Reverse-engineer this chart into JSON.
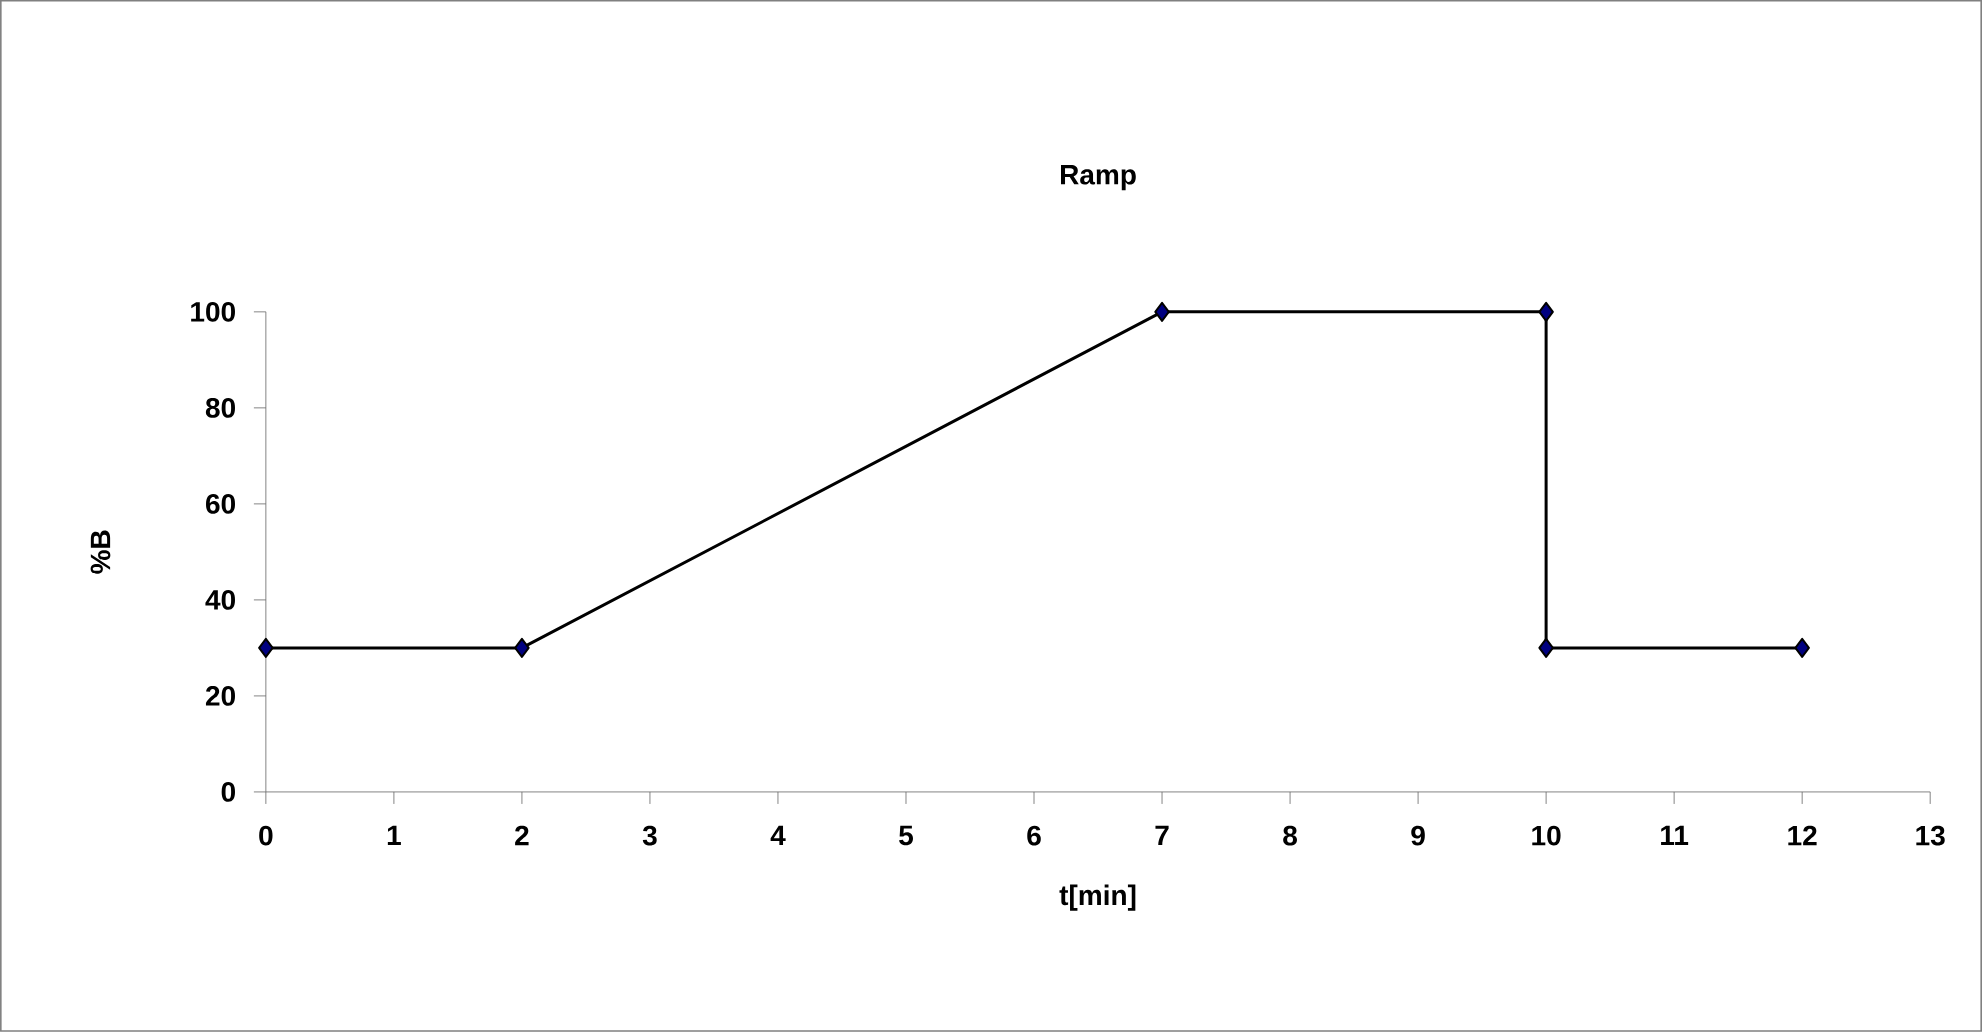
{
  "chart_data": {
    "type": "line",
    "title": "Ramp",
    "xlabel": "t[min]",
    "ylabel": "%B",
    "x": [
      0,
      2,
      7,
      10,
      10,
      12
    ],
    "series": [
      {
        "color": "#000080",
        "values": [
          30,
          30,
          100,
          100,
          30,
          30
        ]
      }
    ],
    "xlim": [
      0,
      13
    ],
    "xticks": [
      0,
      1,
      2,
      3,
      4,
      5,
      6,
      7,
      8,
      9,
      10,
      11,
      12,
      13
    ],
    "ylim": [
      0,
      100
    ],
    "yticks": [
      0,
      20,
      40,
      60,
      80,
      100
    ],
    "marker": "diamond",
    "line_style": "solid",
    "grid": false
  }
}
